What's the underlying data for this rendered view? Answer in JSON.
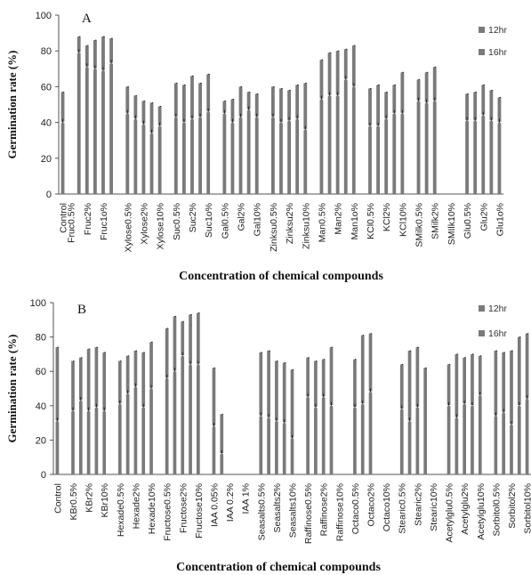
{
  "chart_data": [
    {
      "type": "bar",
      "panel_label": "A",
      "xlabel": "Concentration of chemical compounds",
      "ylabel": "Germination rate (%)",
      "ylim": [
        0,
        100
      ],
      "yticks": [
        0,
        20,
        40,
        60,
        80,
        100
      ],
      "grid": false,
      "legend_position": "top-right",
      "colors": {
        "12hr": "#7a7a7a",
        "16hr": "#7a7a7a"
      },
      "categories": [
        "Control",
        "Fruc0.5%",
        "",
        "Fruc2%",
        "",
        "Fruc1o%",
        "",
        "",
        "Xylose0.5%",
        "",
        "Xylose2%",
        "",
        "Xylose10%",
        "",
        "Suc0.5%",
        "",
        "Suc2%",
        "",
        "Suc1o%",
        "",
        "Gal0.5%",
        "",
        "Gal2%",
        "",
        "Gal10%",
        "",
        "Zinksu0.5%",
        "",
        "Zinksu2%",
        "",
        "Zinksu10%",
        "",
        "Man0.5%",
        "",
        "Man2%",
        "",
        "Man1o%",
        "",
        "KCl0.5%",
        "",
        "KCl2%",
        "",
        "KCl10%",
        "",
        "SMilk0.5%",
        "",
        "SMilk2%",
        "",
        "SMIlk10%",
        "",
        "Glu0.5%",
        "",
        "Glu2%",
        "",
        "Glu1o%"
      ],
      "series": [
        {
          "name": "12hr",
          "values": [
            40,
            null,
            79,
            71,
            70,
            69,
            73,
            null,
            45,
            42,
            39,
            34,
            38,
            null,
            43,
            40,
            42,
            43,
            46,
            null,
            45,
            40,
            43,
            47,
            43,
            null,
            43,
            40,
            41,
            42,
            36,
            null,
            53,
            55,
            55,
            64,
            60,
            null,
            38,
            38,
            42,
            45,
            45,
            null,
            52,
            51,
            52,
            null,
            null,
            null,
            41,
            41,
            44,
            41,
            40
          ]
        },
        {
          "name": "16hr",
          "values": [
            57,
            null,
            88,
            83,
            86,
            88,
            87,
            null,
            60,
            55,
            52,
            51,
            49,
            null,
            62,
            61,
            66,
            62,
            67,
            null,
            52,
            53,
            60,
            57,
            56,
            null,
            60,
            59,
            58,
            61,
            62,
            null,
            75,
            79,
            80,
            81,
            83,
            null,
            59,
            61,
            57,
            61,
            68,
            null,
            64,
            68,
            71,
            null,
            null,
            null,
            56,
            57,
            61,
            58,
            54
          ]
        }
      ]
    },
    {
      "type": "bar",
      "panel_label": "B",
      "xlabel": "Concentration of chemical compounds",
      "ylabel": "Germination rate (%)",
      "ylim": [
        0,
        100
      ],
      "yticks": [
        0,
        20,
        40,
        60,
        80,
        100
      ],
      "grid": false,
      "legend_position": "top-right",
      "colors": {
        "12hr": "#7a7a7a",
        "16hr": "#7a7a7a"
      },
      "categories": [
        "Control",
        "",
        "KBr0.5%",
        "",
        "KBr2%",
        "",
        "KBr10%",
        "",
        "Hexade0.5%",
        "",
        "Hexade2%",
        "",
        "Hexade10%",
        "",
        "Fructose0.5%",
        "",
        "Fructose2%",
        "",
        "Fructose10%",
        "",
        "IAA 0.05%",
        "",
        "IAA 0.2%",
        "",
        "IAA 1%",
        "",
        "Seasalts0.5%",
        "",
        "Seasalts2%",
        "",
        "Seasalts10%",
        "",
        "Raffinose0.5%",
        "",
        "Raffinose2%",
        "",
        "Raffinose10%",
        "",
        "Octaco0.5%",
        "",
        "Octaco2%",
        "",
        "Octaco10%",
        "",
        "Stearic0.5%",
        "",
        "Stearic2%",
        "",
        "Stearic10%",
        "",
        "Acetylglu0.5%",
        "",
        "Acetylglu2%",
        "",
        "Acetylglu10%",
        "",
        "Sorbitol0.5%",
        "",
        "Sorbitol2%",
        "",
        "Sorbitol10%"
      ],
      "series": [
        {
          "name": "12hr",
          "values": [
            31,
            null,
            37,
            43,
            37,
            39,
            37,
            null,
            41,
            47,
            51,
            39,
            50,
            null,
            56,
            60,
            69,
            64,
            64,
            null,
            28,
            12,
            null,
            null,
            null,
            null,
            34,
            33,
            31,
            30,
            21,
            null,
            45,
            39,
            45,
            40,
            null,
            null,
            39,
            41,
            48,
            null,
            null,
            null,
            38,
            31,
            39,
            null,
            null,
            null,
            40,
            33,
            41,
            40,
            46,
            null,
            34,
            36,
            29,
            40,
            44
          ]
        },
        {
          "name": "16hr",
          "values": [
            74,
            null,
            66,
            68,
            73,
            74,
            71,
            null,
            66,
            69,
            72,
            71,
            77,
            null,
            85,
            92,
            89,
            93,
            94,
            null,
            62,
            35,
            null,
            null,
            null,
            null,
            71,
            72,
            66,
            65,
            61,
            null,
            68,
            66,
            67,
            74,
            null,
            null,
            67,
            81,
            82,
            null,
            null,
            null,
            64,
            72,
            74,
            62,
            null,
            null,
            64,
            70,
            68,
            70,
            69,
            null,
            72,
            71,
            72,
            80,
            82
          ]
        }
      ]
    }
  ]
}
